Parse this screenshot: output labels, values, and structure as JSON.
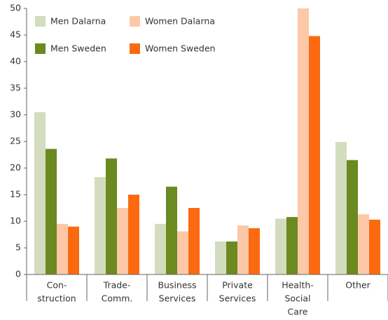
{
  "chart_data": {
    "type": "bar",
    "categories": [
      [
        "Con-",
        "struction"
      ],
      [
        "Trade-",
        "Comm."
      ],
      [
        "Business",
        "Services"
      ],
      [
        "Private",
        "Services"
      ],
      [
        "Health-",
        "Social",
        "Care"
      ],
      [
        "Other"
      ]
    ],
    "series": [
      {
        "name": "Men Dalarna",
        "color": "#d4dcbf",
        "values": [
          30.5,
          18.3,
          9.5,
          6.2,
          10.5,
          24.9
        ]
      },
      {
        "name": "Men Sweden",
        "color": "#6b8a1f",
        "values": [
          23.6,
          21.8,
          16.5,
          6.2,
          10.8,
          21.5
        ]
      },
      {
        "name": "Women Dalarna",
        "color": "#fcc8a8",
        "values": [
          9.5,
          12.5,
          8.1,
          9.2,
          50,
          11.3
        ]
      },
      {
        "name": "Women Sweden",
        "color": "#fb6a10",
        "values": [
          9.0,
          15.0,
          12.5,
          8.7,
          44.8,
          10.3
        ]
      }
    ],
    "ylim": [
      0,
      50
    ],
    "yticks": [
      0,
      5,
      10,
      15,
      20,
      25,
      30,
      35,
      40,
      45,
      50
    ],
    "grid": false
  }
}
